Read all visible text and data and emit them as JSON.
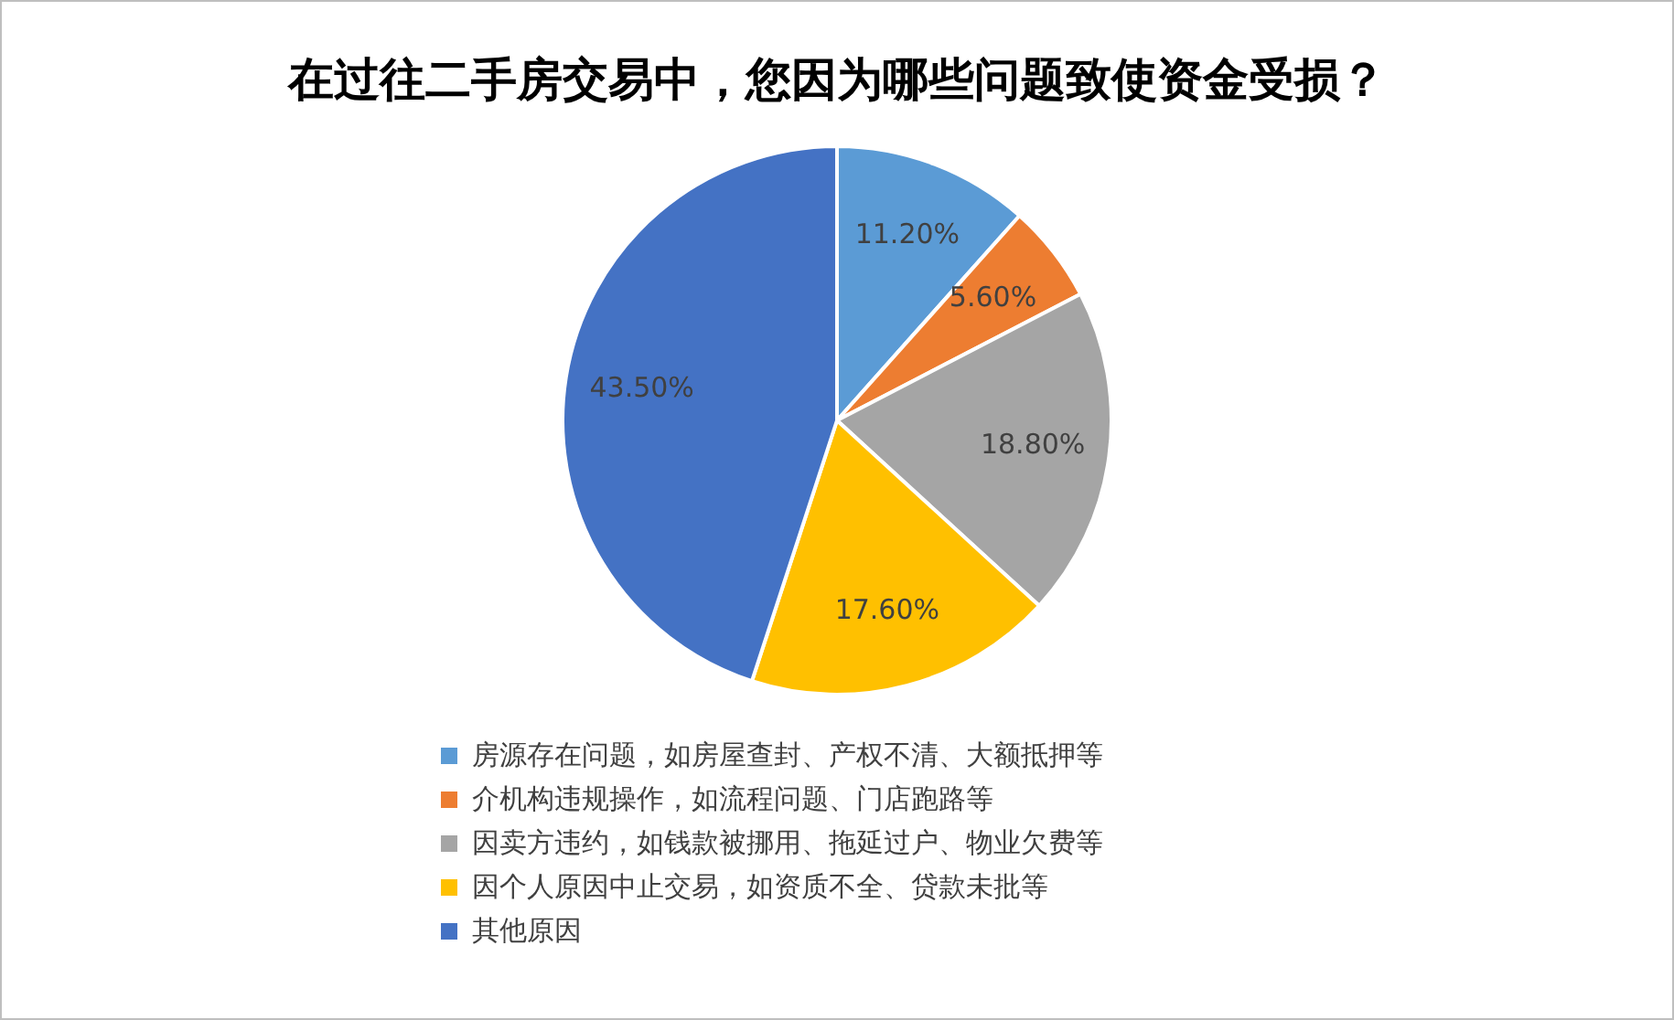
{
  "chart_data": {
    "type": "pie",
    "title": "在过往二手房交易中，您因为哪些问题致使资金受损？",
    "categories": [
      "房源存在问题，如房屋查封、产权不清、大额抵押等",
      "介机构违规操作，如流程问题、门店跑路等",
      "因卖方违约，如钱款被挪用、拖延过户、物业欠费等",
      "因个人原因中止交易，如资质不全、贷款未批等",
      "其他原因"
    ],
    "values": [
      11.2,
      5.6,
      18.8,
      17.6,
      43.5
    ],
    "value_labels": [
      "11.20%",
      "5.60%",
      "18.80%",
      "17.60%",
      "43.50%"
    ],
    "colors": [
      "#5b9bd5",
      "#ed7d31",
      "#a5a5a5",
      "#ffc000",
      "#4472c4"
    ],
    "legend": "bottom"
  }
}
